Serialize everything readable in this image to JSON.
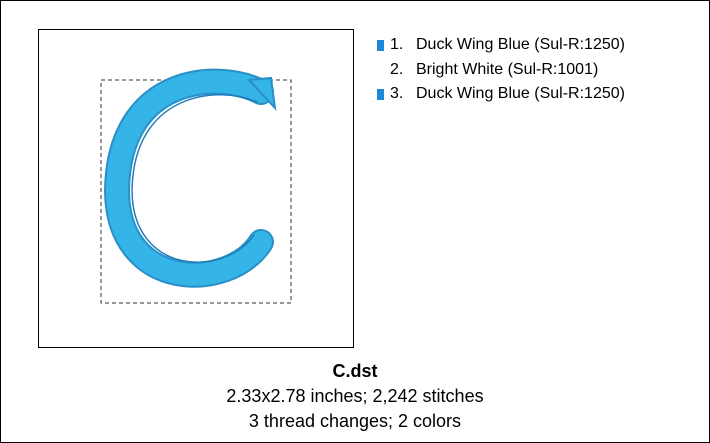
{
  "design": {
    "file_name": "C.dst",
    "size_line": "2.33x2.78 inches; 2,242 stitches",
    "changes_line": "3 thread changes; 2 colors"
  },
  "threads": [
    {
      "number": "1.",
      "name": "Duck Wing Blue (Sul-R:1250)",
      "color": "#1e88d8"
    },
    {
      "number": "2.",
      "name": "Bright White (Sul-R:1001)",
      "color": "#ffffff"
    },
    {
      "number": "3.",
      "name": "Duck Wing Blue (Sul-R:1250)",
      "color": "#1e88d8"
    }
  ]
}
